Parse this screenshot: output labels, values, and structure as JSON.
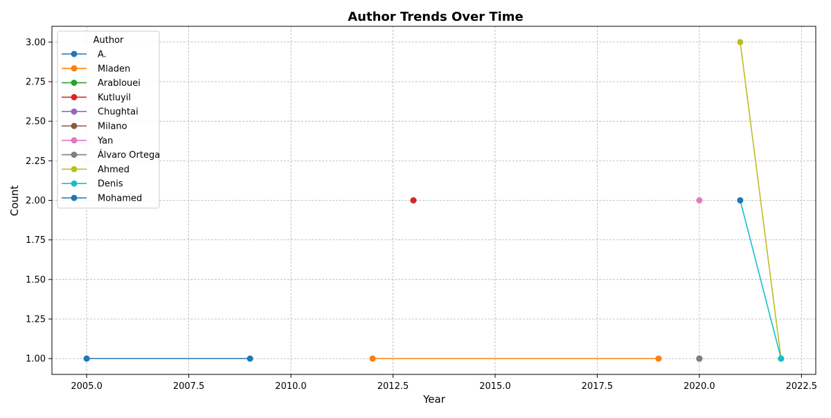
{
  "chart_data": {
    "type": "line",
    "title": "Author Trends Over Time",
    "xlabel": "Year",
    "ylabel": "Count",
    "xlim": [
      2004.15,
      2022.85
    ],
    "ylim": [
      0.9,
      3.1
    ],
    "xticks": [
      2005.0,
      2007.5,
      2010.0,
      2012.5,
      2015.0,
      2017.5,
      2020.0,
      2022.5
    ],
    "xtick_labels": [
      "2005.0",
      "2007.5",
      "2010.0",
      "2012.5",
      "2015.0",
      "2017.5",
      "2020.0",
      "2022.5"
    ],
    "yticks": [
      1.0,
      1.25,
      1.5,
      1.75,
      2.0,
      2.25,
      2.5,
      2.75,
      3.0
    ],
    "ytick_labels": [
      "1.00",
      "1.25",
      "1.50",
      "1.75",
      "2.00",
      "2.25",
      "2.50",
      "2.75",
      "3.00"
    ],
    "grid": true,
    "legend": {
      "title": "Author",
      "placement": "upper-left"
    },
    "series": [
      {
        "name": "A.",
        "color": "#1f77b4",
        "x": [
          2005,
          2009
        ],
        "y": [
          1,
          1
        ]
      },
      {
        "name": "Mladen",
        "color": "#ff7f0e",
        "x": [
          2012,
          2019
        ],
        "y": [
          1,
          1
        ]
      },
      {
        "name": "Arablouei",
        "color": "#2ca02c",
        "x": [
          2013
        ],
        "y": [
          2
        ]
      },
      {
        "name": "Kutluyil",
        "color": "#d62728",
        "x": [
          2013
        ],
        "y": [
          2
        ]
      },
      {
        "name": "Chughtai",
        "color": "#9467bd",
        "x": [
          2020
        ],
        "y": [
          1
        ]
      },
      {
        "name": "Milano",
        "color": "#8c564b",
        "x": [
          2020
        ],
        "y": [
          1
        ]
      },
      {
        "name": "Yan",
        "color": "#e377c2",
        "x": [
          2020
        ],
        "y": [
          2
        ]
      },
      {
        "name": "Álvaro Ortega",
        "color": "#7f7f7f",
        "x": [
          2020
        ],
        "y": [
          1
        ]
      },
      {
        "name": "Ahmed",
        "color": "#bcbd22",
        "x": [
          2021,
          2022
        ],
        "y": [
          3,
          1
        ]
      },
      {
        "name": "Denis",
        "color": "#17becf",
        "x": [
          2021,
          2022
        ],
        "y": [
          2,
          1
        ]
      },
      {
        "name": "Mohamed",
        "color": "#1f77b4",
        "x": [
          2021
        ],
        "y": [
          2
        ]
      }
    ]
  }
}
